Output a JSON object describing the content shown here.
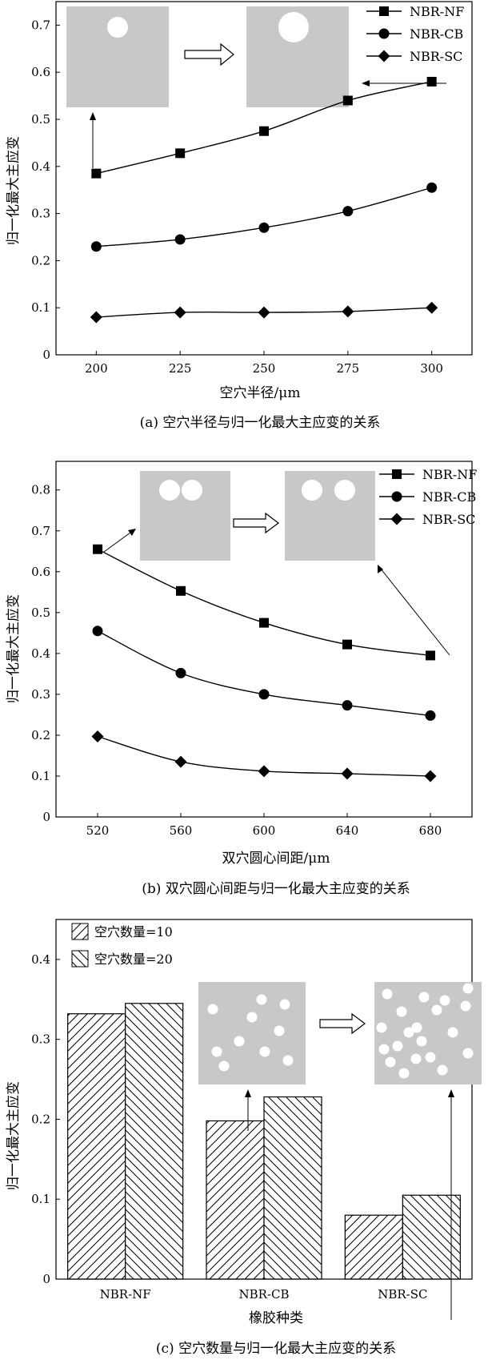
{
  "chart_data": [
    {
      "type": "line",
      "caption": "(a) 空穴半径与归一化最大主应变的关系",
      "xlabel": "空穴半径/μm",
      "ylabel": "归一化最大主应变",
      "x": [
        200,
        225,
        250,
        275,
        300
      ],
      "x_ticks": [
        "200",
        "225",
        "250",
        "275",
        "300"
      ],
      "xlim": [
        188,
        312
      ],
      "ylim": [
        0,
        0.75
      ],
      "y_ticks": [
        "0",
        "0.1",
        "0.2",
        "0.3",
        "0.4",
        "0.5",
        "0.6",
        "0.7"
      ],
      "legend_position": "top-right",
      "series": [
        {
          "name": "NBR-NF",
          "marker": "square",
          "values": [
            0.385,
            0.428,
            0.475,
            0.54,
            0.58
          ]
        },
        {
          "name": "NBR-CB",
          "marker": "circle",
          "values": [
            0.23,
            0.245,
            0.27,
            0.305,
            0.355
          ]
        },
        {
          "name": "NBR-SC",
          "marker": "diamond",
          "values": [
            0.08,
            0.09,
            0.09,
            0.092,
            0.1
          ]
        }
      ]
    },
    {
      "type": "line",
      "caption": "(b) 双穴圆心间距与归一化最大主应变的关系",
      "xlabel": "双穴圆心间距/μm",
      "ylabel": "归一化最大主应变",
      "x": [
        520,
        560,
        600,
        640,
        680
      ],
      "x_ticks": [
        "520",
        "560",
        "600",
        "640",
        "680"
      ],
      "xlim": [
        500,
        700
      ],
      "ylim": [
        0,
        0.87
      ],
      "y_ticks": [
        "0",
        "0.1",
        "0.2",
        "0.3",
        "0.4",
        "0.5",
        "0.6",
        "0.7",
        "0.8"
      ],
      "legend_position": "top-right",
      "series": [
        {
          "name": "NBR-NF",
          "marker": "square",
          "values": [
            0.655,
            0.553,
            0.475,
            0.422,
            0.395
          ]
        },
        {
          "name": "NBR-CB",
          "marker": "circle",
          "values": [
            0.455,
            0.352,
            0.3,
            0.273,
            0.248
          ]
        },
        {
          "name": "NBR-SC",
          "marker": "diamond",
          "values": [
            0.197,
            0.135,
            0.112,
            0.106,
            0.1
          ]
        }
      ]
    },
    {
      "type": "bar",
      "caption": "(c) 空穴数量与归一化最大主应变的关系",
      "xlabel": "橡胶种类",
      "ylabel": "归一化最大主应变",
      "categories": [
        "NBR-NF",
        "NBR-CB",
        "NBR-SC"
      ],
      "ylim": [
        0,
        0.45
      ],
      "y_ticks": [
        "0",
        "0.1",
        "0.2",
        "0.3",
        "0.4"
      ],
      "legend_position": "top-left",
      "series": [
        {
          "name": "空穴数量=10",
          "hatch": "forward",
          "values": [
            0.332,
            0.198,
            0.08
          ]
        },
        {
          "name": "空穴数量=20",
          "hatch": "backward",
          "values": [
            0.345,
            0.228,
            0.105
          ]
        }
      ]
    }
  ]
}
